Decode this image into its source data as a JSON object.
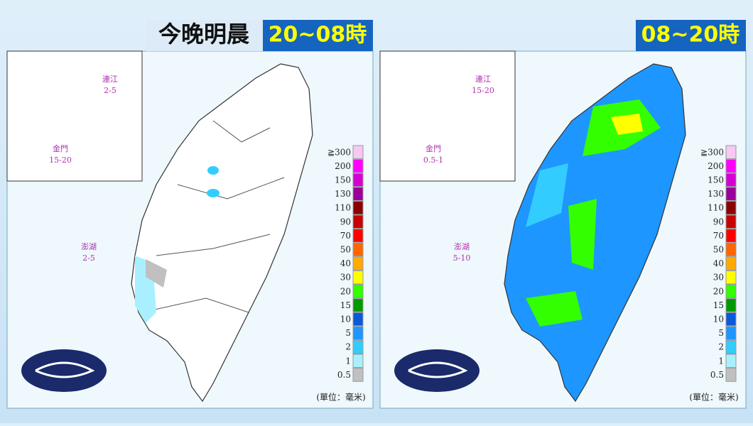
{
  "panels": [
    {
      "title": "今晚明晨",
      "time": "20~08時",
      "islands": [
        {
          "name": "連江",
          "value": "2-5"
        },
        {
          "name": "金門",
          "value": "15-20"
        },
        {
          "name": "澎湖",
          "value": "2-5"
        }
      ],
      "unit": "(單位：毫米)"
    },
    {
      "time": "08~20時",
      "islands": [
        {
          "name": "連江",
          "value": "15-20"
        },
        {
          "name": "金門",
          "value": "0.5-1"
        },
        {
          "name": "澎湖",
          "value": "5-10"
        }
      ],
      "unit": "(單位：毫米)"
    }
  ],
  "legend": {
    "labels": [
      "≧300",
      "200",
      "150",
      "130",
      "110",
      "90",
      "70",
      "50",
      "40",
      "30",
      "20",
      "15",
      "10",
      "5",
      "2",
      "1",
      "0.5"
    ],
    "colors": [
      "#f7c8f2",
      "#ff00ff",
      "#d400d4",
      "#990099",
      "#8b0000",
      "#c80000",
      "#ff0000",
      "#ff6600",
      "#ffaa00",
      "#ffff00",
      "#33ff00",
      "#009a00",
      "#0a5ad8",
      "#1e96ff",
      "#33ccff",
      "#a8f0ff",
      "#c0c0c0"
    ]
  }
}
